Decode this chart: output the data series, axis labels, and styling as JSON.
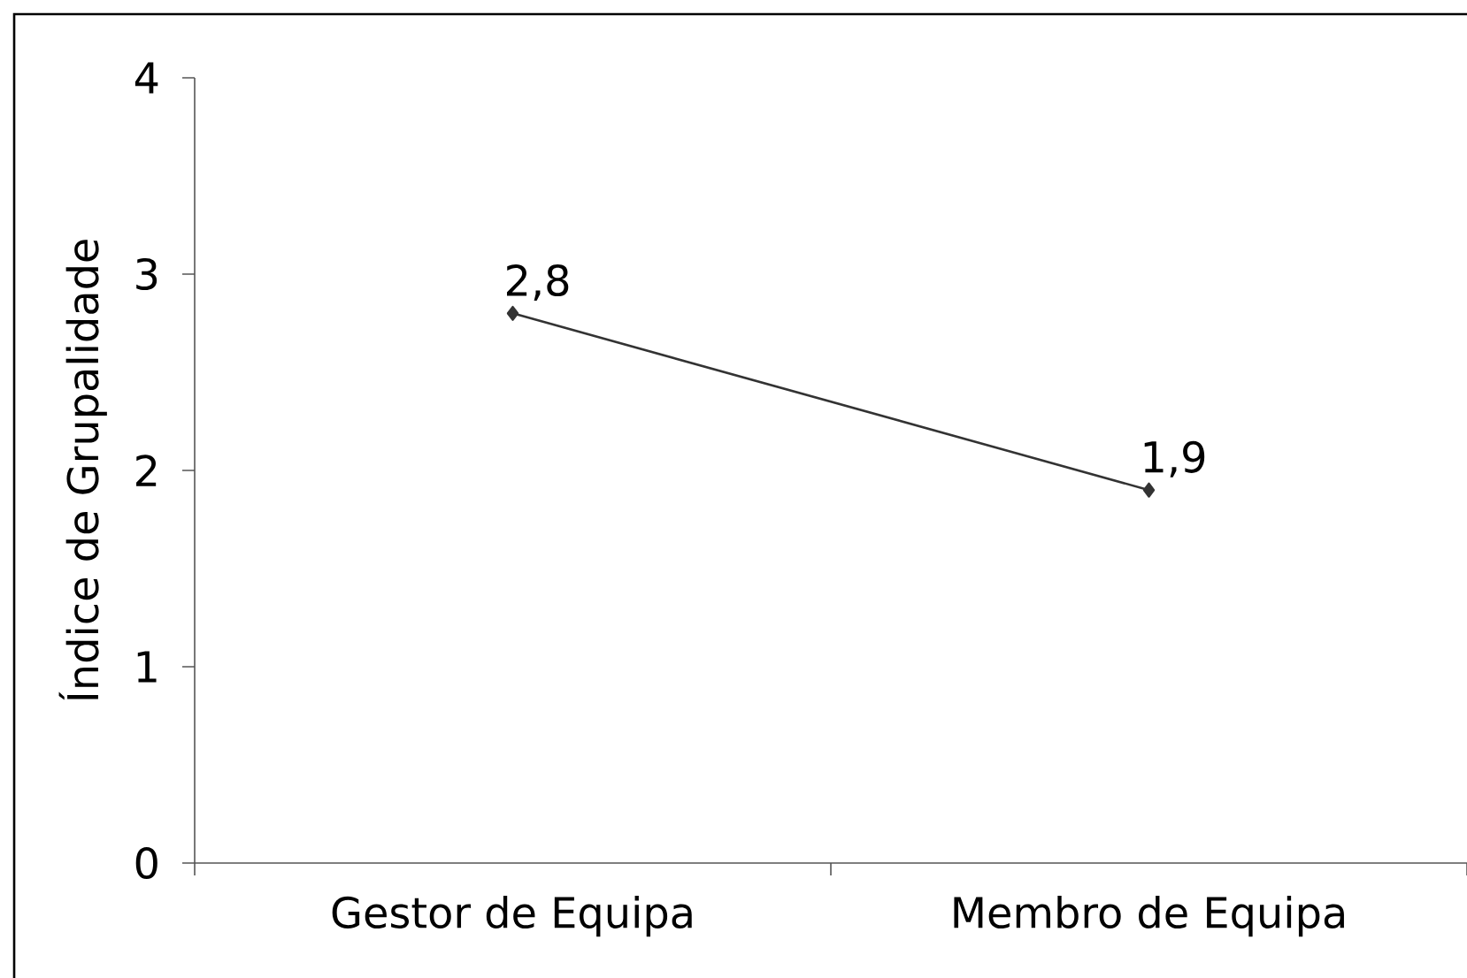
{
  "chart_data": {
    "type": "line",
    "ylabel": "Índice de Grupalidade",
    "categories": [
      "Gestor de Equipa",
      "Membro de Equipa"
    ],
    "values": [
      2.8,
      1.9
    ],
    "value_labels": [
      "2,8",
      "1,9"
    ],
    "color": "#333333",
    "marker": "diamond",
    "line_style": "solid",
    "ylim": [
      0,
      4
    ],
    "yticks": [
      0,
      1,
      2,
      3,
      4
    ]
  }
}
